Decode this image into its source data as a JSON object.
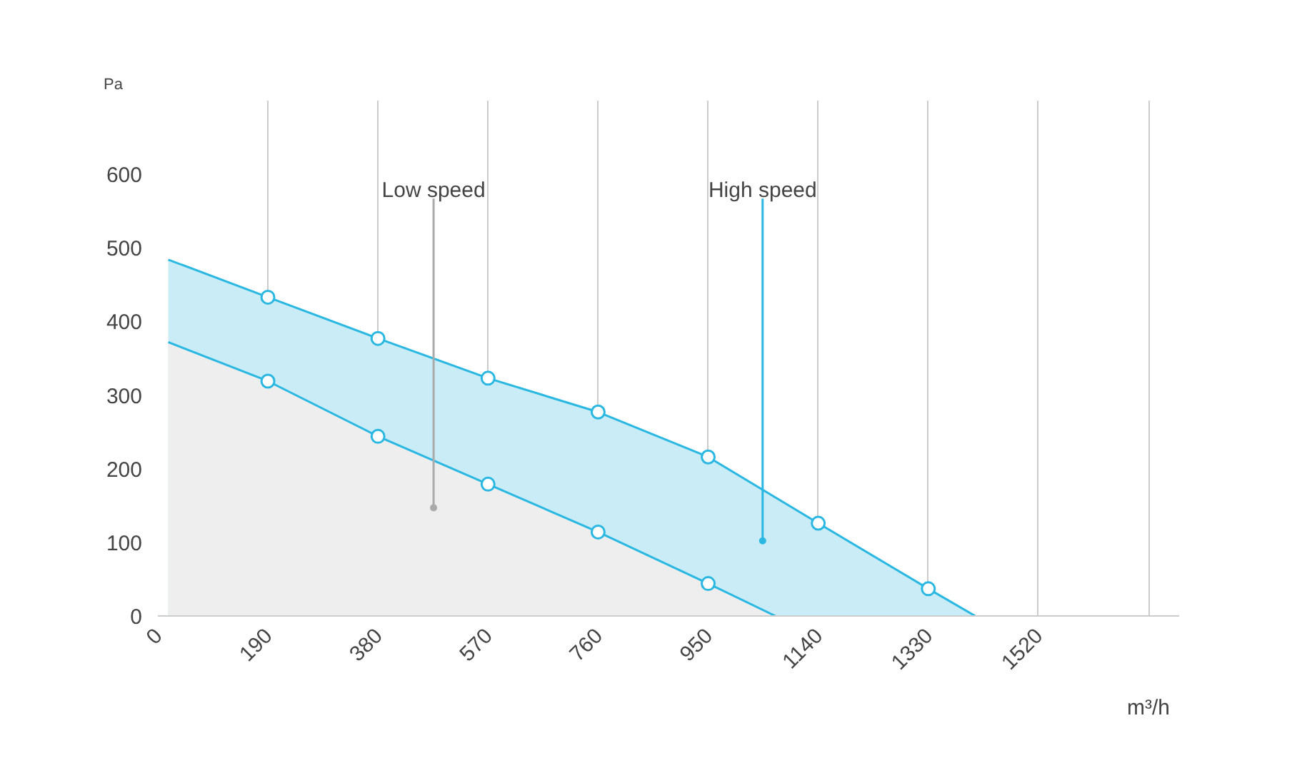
{
  "chart_data": {
    "type": "area",
    "xlabel": "m³/h",
    "ylabel": "Pa",
    "xlim": [
      0,
      1763
    ],
    "ylim": [
      0,
      700
    ],
    "xticks": [
      0,
      190,
      380,
      570,
      760,
      950,
      1140,
      1330,
      1520,
      {
        "value": 1710,
        "label": null
      }
    ],
    "yticks": [
      0,
      100,
      200,
      300,
      400,
      500,
      600
    ],
    "grid": "x",
    "marker": "circle",
    "series": [
      {
        "color": "#2ab8e2",
        "x": [
          18,
          190,
          380,
          570,
          760,
          950,
          1140,
          1330,
          1411
        ],
        "values": [
          484,
          433,
          377,
          323,
          277,
          216,
          126,
          37,
          0
        ]
      },
      {
        "color": "#2ab8e2",
        "x": [
          18,
          190,
          380,
          570,
          760,
          950,
          1066
        ],
        "values": [
          372,
          319,
          244,
          179,
          114,
          44,
          0
        ]
      }
    ],
    "annotations": [
      {
        "text": "Low speed",
        "x": 476,
        "y": 147
      },
      {
        "text": "High speed",
        "x": 1044,
        "y": 102
      }
    ]
  }
}
